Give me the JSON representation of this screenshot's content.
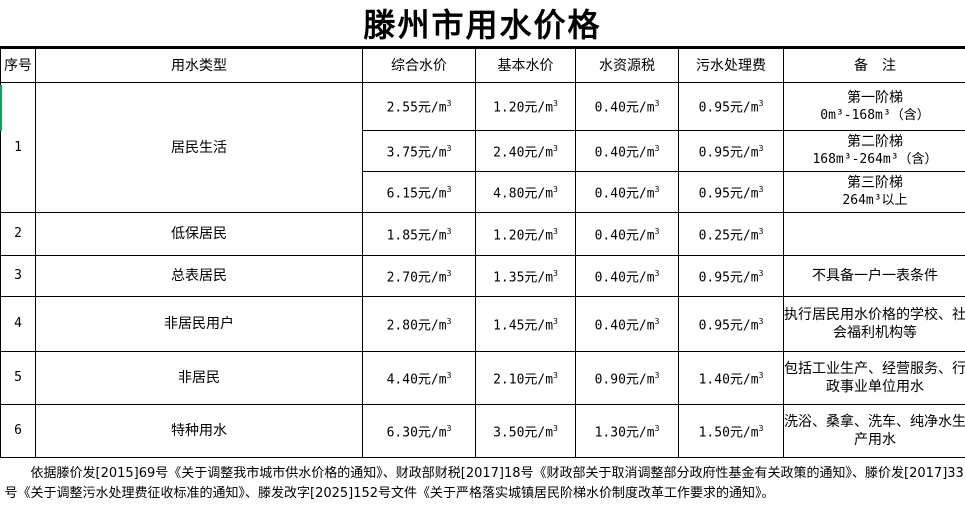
{
  "title": "滕州市用水价格",
  "headers": [
    "序号",
    "用水类型",
    "综合水价",
    "基本水价",
    "水资源税",
    "污水处理费",
    "备　注"
  ],
  "unit": "元/m",
  "rows": [
    {
      "no": "1",
      "type": "居民生活",
      "tiers": [
        {
          "total": "2.55",
          "basic": "1.20",
          "tax": "0.40",
          "sewage": "0.95",
          "note1": "第一阶梯",
          "note2": "0m³-168m³（含）"
        },
        {
          "total": "3.75",
          "basic": "2.40",
          "tax": "0.40",
          "sewage": "0.95",
          "note1": "第二阶梯",
          "note2": "168m³-264m³（含）"
        },
        {
          "total": "6.15",
          "basic": "4.80",
          "tax": "0.40",
          "sewage": "0.95",
          "note1": "第三阶梯",
          "note2": "264m³以上"
        }
      ]
    },
    {
      "no": "2",
      "type": "低保居民",
      "total": "1.85",
      "basic": "1.20",
      "tax": "0.40",
      "sewage": "0.25",
      "note": ""
    },
    {
      "no": "3",
      "type": "总表居民",
      "total": "2.70",
      "basic": "1.35",
      "tax": "0.40",
      "sewage": "0.95",
      "note": "不具备一户一表条件"
    },
    {
      "no": "4",
      "type": "非居民用户",
      "total": "2.80",
      "basic": "1.45",
      "tax": "0.40",
      "sewage": "0.95",
      "note": "执行居民用水价格的学校、社会福利机构等"
    },
    {
      "no": "5",
      "type": "非居民",
      "total": "4.40",
      "basic": "2.10",
      "tax": "0.90",
      "sewage": "1.40",
      "note": "包括工业生产、经营服务、行政事业单位用水"
    },
    {
      "no": "6",
      "type": "特种用水",
      "total": "6.30",
      "basic": "3.50",
      "tax": "1.30",
      "sewage": "1.50",
      "note": "洗浴、桑拿、洗车、纯净水生产用水"
    }
  ],
  "footnote": "依据滕价发[2015]69号《关于调整我市城市供水价格的通知》、财政部财税[2017]18号《财政部关于取消调整部分政府性基金有关政策的通知》、滕价发[2017]33号《关于调整污水处理费征收标准的通知》、滕发改字[2025]152号文件《关于严格落实城镇居民阶梯水价制度改革工作要求的通知》。"
}
